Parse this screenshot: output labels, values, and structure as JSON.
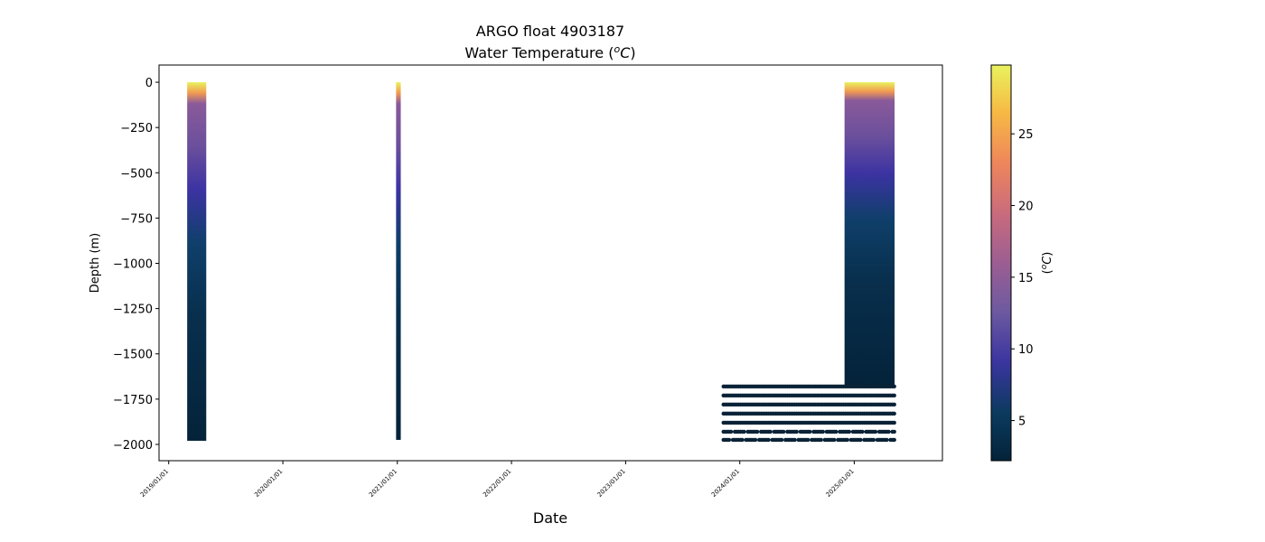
{
  "chart_data": {
    "type": "scatter",
    "title_line1": "ARGO float 4903187",
    "title_line2_prefix": "Water Temperature (",
    "title_unit_sup": "o",
    "title_unit_base": "C",
    "title_line2_suffix": ")",
    "xlabel": "Date",
    "ylabel": "Depth (m)",
    "colorbar_label_prefix": "(",
    "colorbar_label_sup": "o",
    "colorbar_label_base": "C",
    "colorbar_label_suffix": ")",
    "x_ticks": [
      "2019/01/01",
      "2020/01/01",
      "2021/01/01",
      "2022/01/01",
      "2023/01/01",
      "2024/01/01",
      "2025/01/01"
    ],
    "xlim": [
      "2018-12-01",
      "2025-10-10"
    ],
    "y_ticks": [
      0,
      -250,
      -500,
      -750,
      -1000,
      -1250,
      -1500,
      -1750,
      -2000
    ],
    "ylim": [
      -2090,
      95
    ],
    "colorbar_ticks": [
      5,
      10,
      15,
      20,
      25
    ],
    "colorbar_range": [
      2.2,
      29.8
    ],
    "colormap_name": "thermal",
    "grid": false,
    "profile_groups": [
      {
        "start": "2019-03-01",
        "end": "2019-05-01",
        "max_depth": -1980,
        "surface_temp": 29,
        "mixed_layer_depth": -50
      },
      {
        "start": "2020-12-28",
        "end": "2021-01-12",
        "max_depth": -1975,
        "surface_temp": 28,
        "mixed_layer_depth": -20
      },
      {
        "start": "2024-12-01",
        "end": "2025-05-10",
        "max_depth": -1680,
        "surface_temp": 29,
        "mixed_layer_depth": -30
      }
    ],
    "sparse_points": {
      "start": "2023-11-10",
      "end": "2025-05-10",
      "depth_levels": [
        -1680,
        -1730,
        -1780,
        -1830,
        -1880,
        -1930,
        -1975
      ],
      "temperature": 2.4
    }
  }
}
